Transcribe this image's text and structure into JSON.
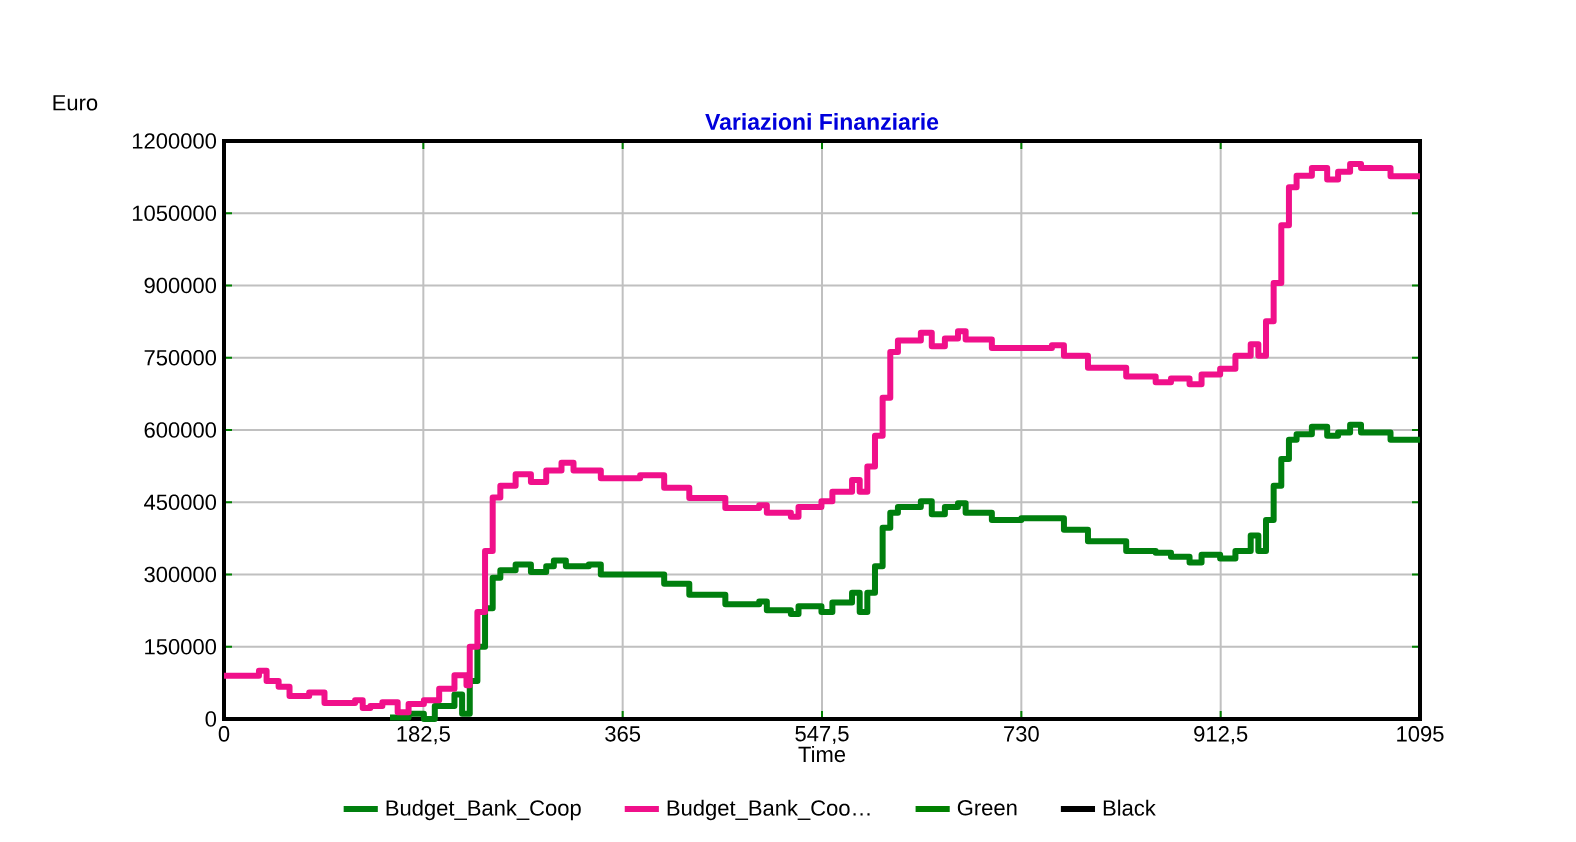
{
  "chart_data": {
    "type": "step",
    "title": "Variazioni Finanziarie",
    "xlabel": "Time",
    "ylabel": "Euro",
    "xlim": [
      0,
      1095
    ],
    "ylim": [
      0,
      1200000
    ],
    "xticks": [
      0,
      {
        "value": 182.5,
        "label": "182,5"
      },
      365,
      {
        "value": 547.5,
        "label": "547,5"
      },
      730,
      {
        "value": 912.5,
        "label": "912,5"
      },
      1095
    ],
    "yticks": [
      0,
      150000,
      300000,
      450000,
      600000,
      750000,
      900000,
      1050000,
      1200000
    ],
    "grid": true,
    "legend": "bottom",
    "marker": "none",
    "line_style": "solid",
    "series": [
      {
        "name": "Budget_Bank_Coop",
        "color": "#007f0e",
        "x": [
          152,
          169,
          183,
          193,
          211,
          218,
          225,
          232,
          239,
          246,
          253,
          267,
          281,
          295,
          302,
          313,
          334,
          345,
          403,
          426,
          459,
          490,
          497,
          519,
          526,
          547,
          557,
          575,
          582,
          589,
          596,
          603,
          610,
          617,
          638,
          648,
          660,
          672,
          679,
          703,
          730,
          769,
          791,
          826,
          853,
          867,
          884,
          895,
          912,
          926,
          940,
          947,
          954,
          961,
          968,
          975,
          982,
          996,
          1010,
          1020,
          1031,
          1041,
          1068,
          1095
        ],
        "values": [
          3000,
          11000,
          0,
          27000,
          51000,
          11000,
          79000,
          150000,
          230000,
          293000,
          309000,
          321000,
          305000,
          317000,
          329000,
          317000,
          321000,
          300000,
          281000,
          258000,
          238000,
          244000,
          226000,
          218000,
          234000,
          222000,
          242000,
          262000,
          222000,
          262000,
          317000,
          397000,
          428000,
          440000,
          452000,
          425000,
          440000,
          448000,
          428000,
          413000,
          417000,
          393000,
          369000,
          349000,
          345000,
          337000,
          325000,
          341000,
          333000,
          349000,
          381000,
          349000,
          413000,
          484000,
          540000,
          580000,
          591000,
          607000,
          588000,
          595000,
          611000,
          595000,
          580000,
          580000
        ]
      },
      {
        "name": "Budget_Bank_Coo…",
        "color": "#f0108a",
        "x": [
          0,
          32,
          39,
          50,
          60,
          78,
          92,
          120,
          127,
          134,
          145,
          159,
          169,
          183,
          197,
          211,
          222,
          225,
          232,
          239,
          246,
          253,
          267,
          281,
          295,
          309,
          320,
          345,
          381,
          403,
          426,
          459,
          490,
          497,
          519,
          526,
          547,
          557,
          575,
          582,
          589,
          596,
          603,
          610,
          617,
          638,
          648,
          660,
          672,
          679,
          703,
          758,
          769,
          791,
          826,
          853,
          867,
          884,
          895,
          912,
          926,
          940,
          947,
          954,
          961,
          968,
          975,
          982,
          996,
          1010,
          1020,
          1031,
          1041,
          1068,
          1095
        ],
        "values": [
          90000,
          100000,
          79000,
          67000,
          48000,
          55000,
          33000,
          39000,
          23000,
          27000,
          35000,
          14000,
          31000,
          39000,
          63000,
          91000,
          70000,
          150000,
          222000,
          349000,
          460000,
          484000,
          508000,
          492000,
          516000,
          532000,
          516000,
          500000,
          506000,
          480000,
          459000,
          438000,
          444000,
          428000,
          420000,
          440000,
          452000,
          472000,
          496000,
          472000,
          524000,
          588000,
          667000,
          762000,
          786000,
          802000,
          774000,
          790000,
          805000,
          788000,
          770000,
          776000,
          754000,
          729000,
          711000,
          699000,
          707000,
          695000,
          715000,
          727000,
          754000,
          778000,
          754000,
          826000,
          905000,
          1025000,
          1104000,
          1128000,
          1144000,
          1120000,
          1136000,
          1152000,
          1144000,
          1127000,
          1127000
        ]
      },
      {
        "name": "Green",
        "color": "#008000"
      },
      {
        "name": "Black",
        "color": "#000000"
      }
    ]
  }
}
